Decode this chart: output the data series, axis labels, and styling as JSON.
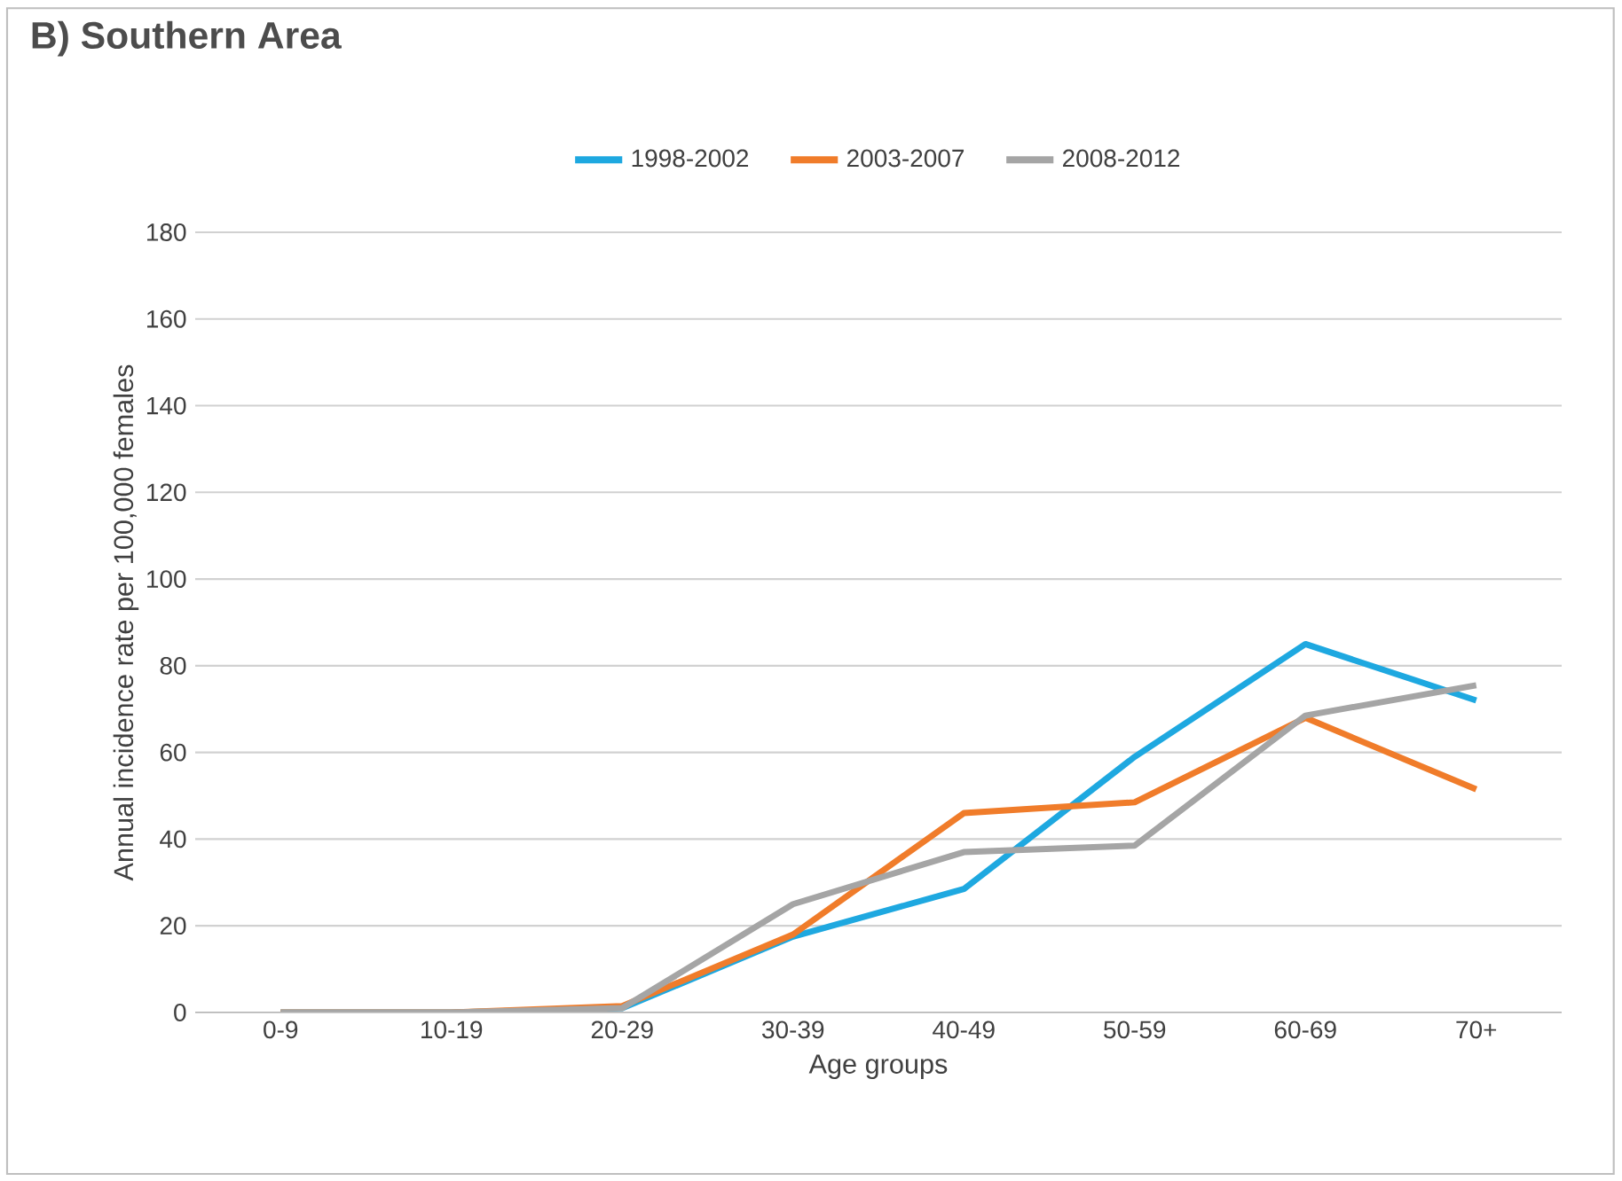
{
  "chart_data": {
    "type": "line",
    "title": "B) Southern Area",
    "xlabel": "Age groups",
    "ylabel": "Annual incidence rate per 100,000 females",
    "categories": [
      "0-9",
      "10-19",
      "20-29",
      "30-39",
      "40-49",
      "50-59",
      "60-69",
      "70+"
    ],
    "series": [
      {
        "name": "1998-2002",
        "color": "#1ea8e0",
        "values": [
          0,
          0,
          1,
          17.5,
          28.5,
          59,
          85,
          72
        ]
      },
      {
        "name": "2003-2007",
        "color": "#f07c2a",
        "values": [
          0,
          0,
          1.5,
          18,
          46,
          48.5,
          68,
          51.5
        ]
      },
      {
        "name": "2008-2012",
        "color": "#a5a5a5",
        "values": [
          0,
          0,
          1,
          25,
          37,
          38.5,
          68.5,
          75.5
        ]
      }
    ],
    "ylim": [
      0,
      180
    ],
    "yticks": [
      0,
      20,
      40,
      60,
      80,
      100,
      120,
      140,
      160,
      180
    ],
    "grid": "y",
    "legend": "top",
    "marker": "none",
    "line_style": "solid"
  }
}
